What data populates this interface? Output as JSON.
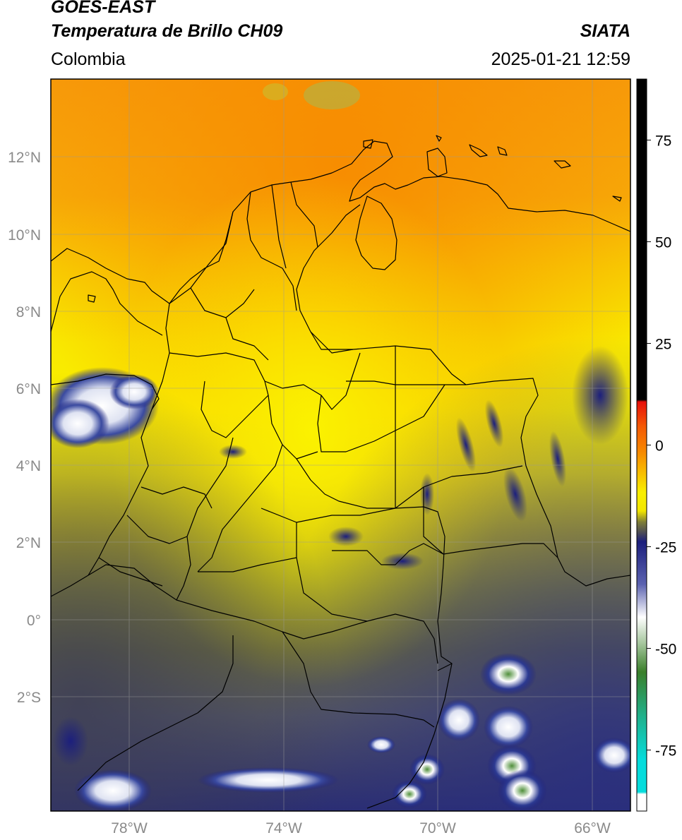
{
  "header": {
    "satellite": "GOES-EAST",
    "product": "Temperatura de Brillo CH09",
    "region": "Colombia",
    "agency": "SIATA",
    "datetime": "2025-01-21 12:59"
  },
  "map": {
    "lon_range": [
      -80,
      -65
    ],
    "lat_range": [
      -5,
      14
    ],
    "lat_ticks": [
      "12°N",
      "10°N",
      "8°N",
      "6°N",
      "4°N",
      "2°N",
      "0°",
      "2°S"
    ],
    "lon_ticks": [
      "78°W",
      "74°W",
      "70°W",
      "66°W"
    ]
  },
  "colorbar": {
    "range": [
      -90,
      90
    ],
    "ticks": [
      "75",
      "50",
      "25",
      "0",
      "-25",
      "-50",
      "-75"
    ],
    "tick_values": [
      75,
      50,
      25,
      0,
      -25,
      -50,
      -75
    ],
    "colors": {
      "warm_limit": "#000000",
      "red": "#e8100a",
      "orange": "#f78a00",
      "yellow": "#f9ef00",
      "olive": "#7f7e37",
      "gray": "#4a4a58",
      "navy": "#1c1f7d",
      "white": "#ffffff",
      "green": "#3a7f2a",
      "teal": "#20b08a",
      "cyan": "#05dcdc"
    }
  }
}
